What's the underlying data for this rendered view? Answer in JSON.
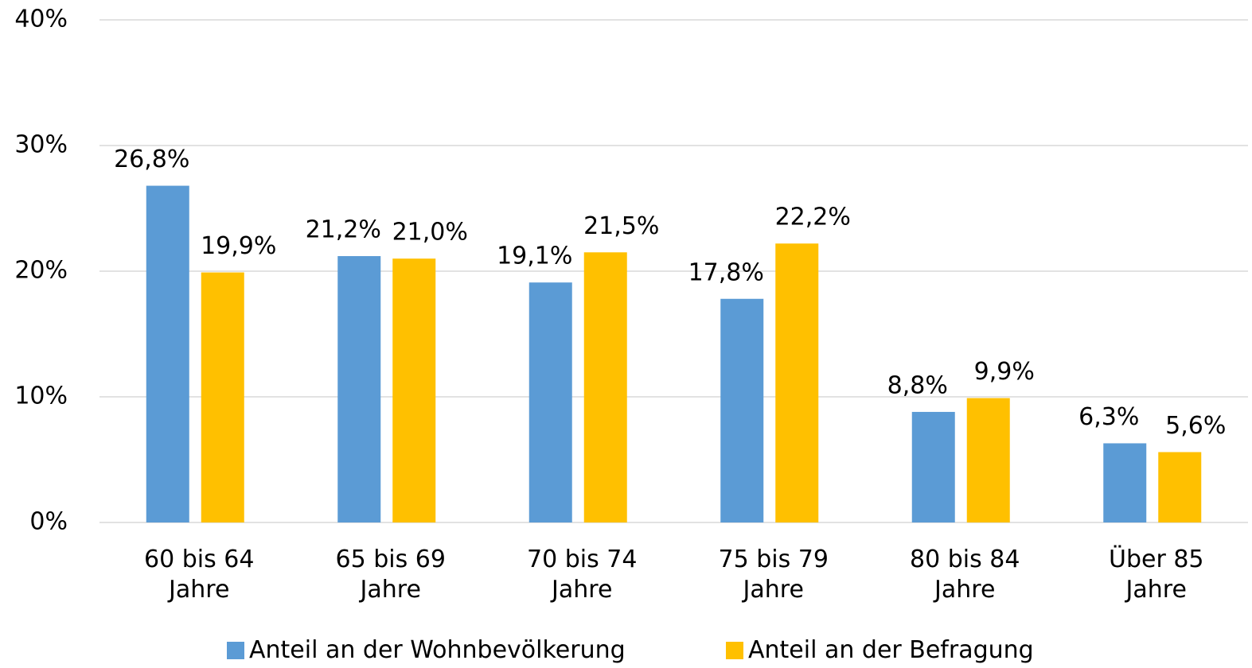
{
  "chart_data": {
    "type": "bar",
    "categories": [
      "60 bis 64\nJahre",
      "65 bis 69\nJahre",
      "70 bis 74\nJahre",
      "75 bis 79\nJahre",
      "80 bis 84\nJahre",
      "Über 85\nJahre"
    ],
    "series": [
      {
        "name": "Anteil an der Wohnbevölkerung",
        "color": "#5b9bd5",
        "values": [
          26.8,
          21.2,
          19.1,
          17.8,
          8.8,
          6.3
        ],
        "value_labels": [
          "26,8%",
          "21,2%",
          "19,1%",
          "17,8%",
          "8,8%",
          "6,3%"
        ]
      },
      {
        "name": "Anteil an der Befragung",
        "color": "#ffc000",
        "values": [
          19.9,
          21.0,
          21.5,
          22.2,
          9.9,
          5.6
        ],
        "value_labels": [
          "19,9%",
          "21,0%",
          "21,5%",
          "22,2%",
          "9,9%",
          "5,6%"
        ]
      }
    ],
    "ylim": [
      0,
      40
    ],
    "yticks": [
      {
        "value": 0,
        "label": "0%"
      },
      {
        "value": 10,
        "label": "10%"
      },
      {
        "value": 20,
        "label": "20%"
      },
      {
        "value": 30,
        "label": "30%"
      },
      {
        "value": 40,
        "label": "40%"
      }
    ],
    "grid": true,
    "legend": "bottom"
  }
}
